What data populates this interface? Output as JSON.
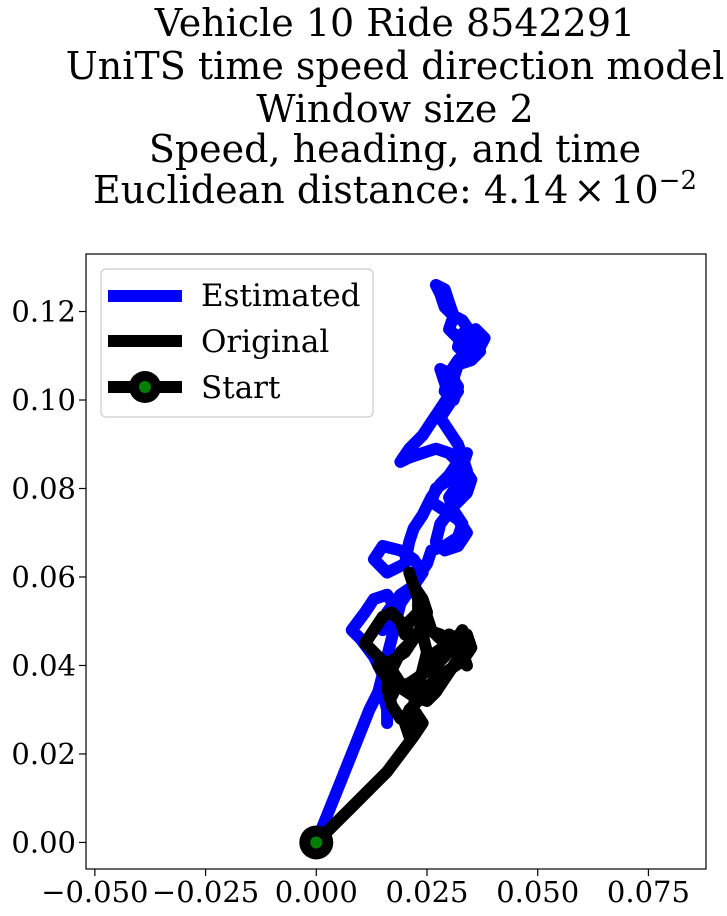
{
  "chart_data": {
    "type": "line",
    "title_lines": [
      "Vehicle 10 Ride 8542291",
      "UniTS time speed direction model",
      "Window size 2",
      "Speed, heading, and time"
    ],
    "title_metric_label": "Euclidean distance: 4.14",
    "title_metric_times": "×",
    "title_metric_base": "10",
    "title_metric_exponent": "−2",
    "xlabel": "",
    "ylabel": "",
    "xlim": [
      -0.052,
      0.088
    ],
    "ylim": [
      -0.006,
      0.133
    ],
    "xticks": [
      -0.05,
      -0.025,
      0.0,
      0.025,
      0.05,
      0.075
    ],
    "xtick_labels": [
      "−0.050",
      "−0.025",
      "0.000",
      "0.025",
      "0.050",
      "0.075"
    ],
    "yticks": [
      0.0,
      0.02,
      0.04,
      0.06,
      0.08,
      0.1,
      0.12
    ],
    "ytick_labels": [
      "0.00",
      "0.02",
      "0.04",
      "0.06",
      "0.08",
      "0.10",
      "0.12"
    ],
    "grid": false,
    "legend_position": "top-left",
    "legend": [
      {
        "label": "Estimated",
        "color": "#0000ff",
        "marker": "none"
      },
      {
        "label": "Original",
        "color": "#000000",
        "marker": "none"
      },
      {
        "label": "Start",
        "color": "#000000",
        "marker": "circle",
        "marker_face": "#008000"
      }
    ],
    "start_point": {
      "x": 0.0,
      "y": 0.0,
      "edge_color": "#000000",
      "face_color": "#008000"
    },
    "series": [
      {
        "name": "Estimated",
        "color": "#0000ff",
        "points": [
          [
            0.0,
            0.0
          ],
          [
            0.002,
            0.005
          ],
          [
            0.004,
            0.01
          ],
          [
            0.006,
            0.015
          ],
          [
            0.008,
            0.02
          ],
          [
            0.01,
            0.025
          ],
          [
            0.012,
            0.03
          ],
          [
            0.014,
            0.034
          ],
          [
            0.015,
            0.038
          ],
          [
            0.013,
            0.042
          ],
          [
            0.01,
            0.046
          ],
          [
            0.008,
            0.048
          ],
          [
            0.011,
            0.052
          ],
          [
            0.013,
            0.055
          ],
          [
            0.016,
            0.056
          ],
          [
            0.018,
            0.053
          ],
          [
            0.017,
            0.05
          ],
          [
            0.015,
            0.048
          ],
          [
            0.016,
            0.052
          ],
          [
            0.019,
            0.056
          ],
          [
            0.022,
            0.058
          ],
          [
            0.024,
            0.061
          ],
          [
            0.022,
            0.064
          ],
          [
            0.019,
            0.066
          ],
          [
            0.015,
            0.067
          ],
          [
            0.013,
            0.064
          ],
          [
            0.016,
            0.061
          ],
          [
            0.02,
            0.063
          ],
          [
            0.021,
            0.068
          ],
          [
            0.022,
            0.071
          ],
          [
            0.024,
            0.074
          ],
          [
            0.026,
            0.078
          ],
          [
            0.028,
            0.081
          ],
          [
            0.03,
            0.083
          ],
          [
            0.032,
            0.086
          ],
          [
            0.034,
            0.088
          ],
          [
            0.033,
            0.085
          ],
          [
            0.03,
            0.082
          ],
          [
            0.027,
            0.08
          ],
          [
            0.026,
            0.077
          ],
          [
            0.029,
            0.075
          ],
          [
            0.032,
            0.073
          ],
          [
            0.034,
            0.07
          ],
          [
            0.032,
            0.067
          ],
          [
            0.029,
            0.066
          ],
          [
            0.027,
            0.068
          ],
          [
            0.028,
            0.072
          ],
          [
            0.031,
            0.076
          ],
          [
            0.034,
            0.079
          ],
          [
            0.035,
            0.082
          ],
          [
            0.033,
            0.085
          ],
          [
            0.03,
            0.088
          ],
          [
            0.027,
            0.089
          ],
          [
            0.024,
            0.088
          ],
          [
            0.021,
            0.087
          ],
          [
            0.019,
            0.086
          ],
          [
            0.021,
            0.089
          ],
          [
            0.024,
            0.092
          ],
          [
            0.026,
            0.095
          ],
          [
            0.028,
            0.098
          ],
          [
            0.03,
            0.101
          ],
          [
            0.029,
            0.104
          ],
          [
            0.028,
            0.107
          ],
          [
            0.03,
            0.106
          ],
          [
            0.032,
            0.103
          ],
          [
            0.031,
            0.1
          ],
          [
            0.029,
            0.102
          ],
          [
            0.03,
            0.106
          ],
          [
            0.032,
            0.109
          ],
          [
            0.034,
            0.111
          ],
          [
            0.037,
            0.112
          ],
          [
            0.038,
            0.114
          ],
          [
            0.036,
            0.116
          ],
          [
            0.033,
            0.115
          ],
          [
            0.032,
            0.112
          ],
          [
            0.034,
            0.11
          ],
          [
            0.036,
            0.112
          ],
          [
            0.035,
            0.115
          ],
          [
            0.033,
            0.118
          ],
          [
            0.031,
            0.119
          ],
          [
            0.029,
            0.121
          ],
          [
            0.028,
            0.124
          ],
          [
            0.027,
            0.126
          ],
          [
            0.029,
            0.125
          ],
          [
            0.03,
            0.122
          ],
          [
            0.031,
            0.119
          ],
          [
            0.03,
            0.116
          ],
          [
            0.032,
            0.114
          ],
          [
            0.035,
            0.113
          ],
          [
            0.037,
            0.111
          ],
          [
            0.035,
            0.109
          ],
          [
            0.032,
            0.108
          ],
          [
            0.031,
            0.105
          ],
          [
            0.032,
            0.102
          ],
          [
            0.03,
            0.099
          ],
          [
            0.028,
            0.096
          ],
          [
            0.03,
            0.093
          ],
          [
            0.032,
            0.09
          ],
          [
            0.033,
            0.087
          ],
          [
            0.034,
            0.084
          ],
          [
            0.032,
            0.081
          ],
          [
            0.03,
            0.078
          ],
          [
            0.031,
            0.075
          ],
          [
            0.033,
            0.072
          ],
          [
            0.032,
            0.069
          ],
          [
            0.029,
            0.067
          ],
          [
            0.026,
            0.066
          ],
          [
            0.025,
            0.063
          ],
          [
            0.023,
            0.06
          ],
          [
            0.021,
            0.057
          ],
          [
            0.019,
            0.054
          ],
          [
            0.018,
            0.05
          ],
          [
            0.017,
            0.046
          ],
          [
            0.016,
            0.042
          ],
          [
            0.015,
            0.038
          ],
          [
            0.015,
            0.034
          ],
          [
            0.016,
            0.03
          ],
          [
            0.016,
            0.027
          ]
        ]
      },
      {
        "name": "Original",
        "color": "#000000",
        "points": [
          [
            0.0,
            0.0
          ],
          [
            0.004,
            0.004
          ],
          [
            0.008,
            0.008
          ],
          [
            0.012,
            0.012
          ],
          [
            0.016,
            0.016
          ],
          [
            0.019,
            0.02
          ],
          [
            0.022,
            0.024
          ],
          [
            0.024,
            0.027
          ],
          [
            0.022,
            0.03
          ],
          [
            0.019,
            0.028
          ],
          [
            0.017,
            0.031
          ],
          [
            0.016,
            0.035
          ],
          [
            0.017,
            0.039
          ],
          [
            0.019,
            0.043
          ],
          [
            0.022,
            0.046
          ],
          [
            0.025,
            0.048
          ],
          [
            0.028,
            0.047
          ],
          [
            0.03,
            0.045
          ],
          [
            0.032,
            0.042
          ],
          [
            0.034,
            0.04
          ],
          [
            0.033,
            0.043
          ],
          [
            0.03,
            0.045
          ],
          [
            0.027,
            0.043
          ],
          [
            0.025,
            0.04
          ],
          [
            0.023,
            0.037
          ],
          [
            0.021,
            0.034
          ],
          [
            0.019,
            0.036
          ],
          [
            0.017,
            0.039
          ],
          [
            0.015,
            0.041
          ],
          [
            0.013,
            0.043
          ],
          [
            0.011,
            0.045
          ],
          [
            0.013,
            0.048
          ],
          [
            0.015,
            0.051
          ],
          [
            0.017,
            0.052
          ],
          [
            0.019,
            0.05
          ],
          [
            0.02,
            0.047
          ],
          [
            0.021,
            0.05
          ],
          [
            0.023,
            0.052
          ],
          [
            0.025,
            0.051
          ],
          [
            0.026,
            0.048
          ],
          [
            0.028,
            0.046
          ],
          [
            0.03,
            0.047
          ],
          [
            0.032,
            0.046
          ],
          [
            0.034,
            0.047
          ],
          [
            0.035,
            0.044
          ],
          [
            0.033,
            0.041
          ],
          [
            0.03,
            0.039
          ],
          [
            0.027,
            0.037
          ],
          [
            0.025,
            0.035
          ],
          [
            0.023,
            0.032
          ],
          [
            0.021,
            0.03
          ],
          [
            0.02,
            0.027
          ],
          [
            0.021,
            0.024
          ],
          [
            0.022,
            0.027
          ],
          [
            0.022,
            0.031
          ],
          [
            0.023,
            0.035
          ],
          [
            0.024,
            0.039
          ],
          [
            0.025,
            0.043
          ],
          [
            0.024,
            0.047
          ],
          [
            0.023,
            0.051
          ],
          [
            0.023,
            0.055
          ],
          [
            0.022,
            0.058
          ],
          [
            0.021,
            0.061
          ],
          [
            0.022,
            0.058
          ],
          [
            0.024,
            0.055
          ],
          [
            0.025,
            0.052
          ],
          [
            0.024,
            0.049
          ],
          [
            0.022,
            0.046
          ],
          [
            0.02,
            0.043
          ],
          [
            0.017,
            0.041
          ],
          [
            0.014,
            0.04
          ],
          [
            0.016,
            0.037
          ],
          [
            0.019,
            0.035
          ],
          [
            0.022,
            0.033
          ],
          [
            0.025,
            0.032
          ],
          [
            0.027,
            0.034
          ],
          [
            0.029,
            0.037
          ],
          [
            0.031,
            0.04
          ],
          [
            0.033,
            0.043
          ],
          [
            0.034,
            0.046
          ],
          [
            0.033,
            0.048
          ],
          [
            0.031,
            0.045
          ],
          [
            0.029,
            0.042
          ],
          [
            0.027,
            0.04
          ],
          [
            0.024,
            0.038
          ],
          [
            0.021,
            0.036
          ],
          [
            0.018,
            0.035
          ],
          [
            0.017,
            0.033
          ]
        ]
      }
    ]
  }
}
